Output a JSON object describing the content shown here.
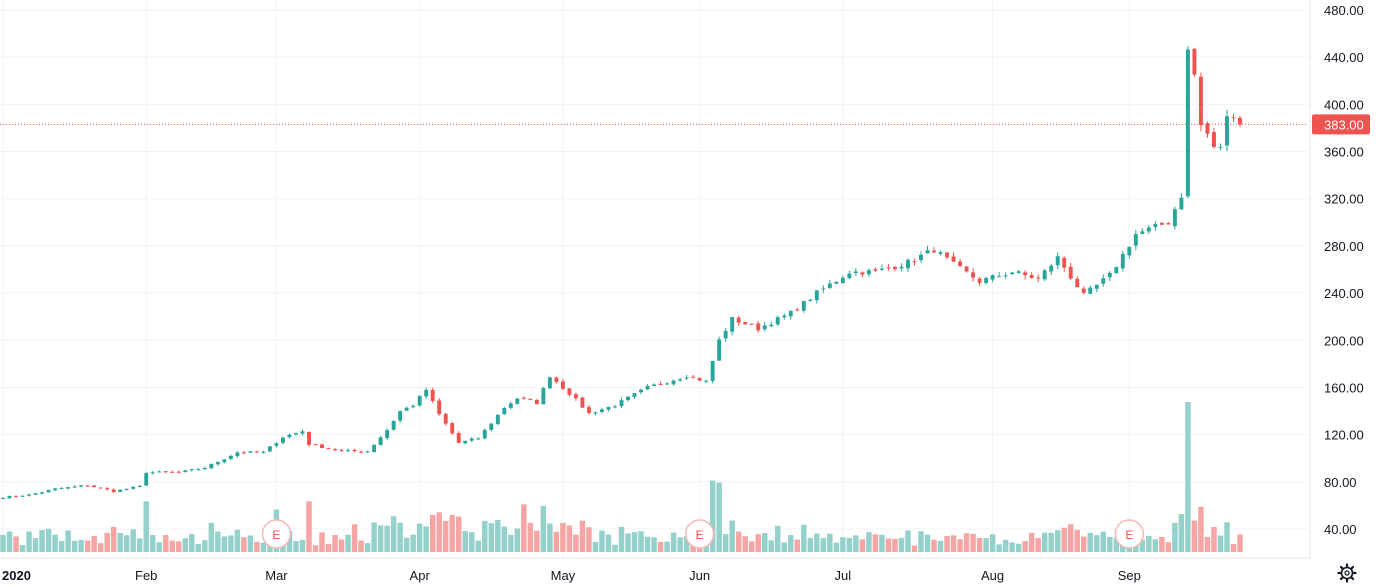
{
  "chart_data": {
    "type": "candlestick",
    "period": "daily",
    "y_axis": {
      "ticks": [
        "40.00",
        "80.00",
        "120.00",
        "160.00",
        "200.00",
        "240.00",
        "280.00",
        "320.00",
        "360.00",
        "400.00",
        "440.00",
        "480.00"
      ],
      "ylim": [
        23,
        487
      ],
      "position": "right"
    },
    "x_axis_labels": [
      "2020",
      "Feb",
      "Mar",
      "Apr",
      "May",
      "Jun",
      "Jul",
      "Aug",
      "Sep"
    ],
    "last_price": 383.0,
    "last_price_label": "383.00",
    "earnings_marker": "E",
    "earnings_dates": [
      "2020-03-02",
      "2020-06-01",
      "2020-09-01"
    ],
    "colors": {
      "up": "#26a69a",
      "down": "#ef5350",
      "volume_up": "#94d1cb",
      "volume_down": "#f5a5a3",
      "grid": "#f0f3fa",
      "price_line": "#ef5350"
    },
    "grid": true,
    "anchors": [
      [
        "2020-01-02",
        67
      ],
      [
        "2020-01-08",
        69
      ],
      [
        "2020-01-14",
        74
      ],
      [
        "2020-01-21",
        77
      ],
      [
        "2020-01-27",
        72
      ],
      [
        "2020-01-31",
        76
      ],
      [
        "2020-02-03",
        88
      ],
      [
        "2020-02-10",
        88
      ],
      [
        "2020-02-14",
        92
      ],
      [
        "2020-02-21",
        105
      ],
      [
        "2020-02-27",
        105
      ],
      [
        "2020-03-03",
        118
      ],
      [
        "2020-03-06",
        123
      ],
      [
        "2020-03-09",
        112
      ],
      [
        "2020-03-16",
        106
      ],
      [
        "2020-03-20",
        106
      ],
      [
        "2020-03-25",
        124
      ],
      [
        "2020-03-27",
        140
      ],
      [
        "2020-03-31",
        145
      ],
      [
        "2020-04-02",
        158
      ],
      [
        "2020-04-06",
        137
      ],
      [
        "2020-04-09",
        113
      ],
      [
        "2020-04-14",
        117
      ],
      [
        "2020-04-20",
        143
      ],
      [
        "2020-04-22",
        151
      ],
      [
        "2020-04-27",
        147
      ],
      [
        "2020-04-29",
        170
      ],
      [
        "2020-05-04",
        155
      ],
      [
        "2020-05-07",
        138
      ],
      [
        "2020-05-13",
        145
      ],
      [
        "2020-05-20",
        160
      ],
      [
        "2020-05-28",
        170
      ],
      [
        "2020-06-02",
        165
      ],
      [
        "2020-06-04",
        200
      ],
      [
        "2020-06-08",
        218
      ],
      [
        "2020-06-12",
        210
      ],
      [
        "2020-06-19",
        223
      ],
      [
        "2020-06-25",
        240
      ],
      [
        "2020-07-02",
        258
      ],
      [
        "2020-07-08",
        258
      ],
      [
        "2020-07-15",
        266
      ],
      [
        "2020-07-21",
        277
      ],
      [
        "2020-07-24",
        264
      ],
      [
        "2020-07-30",
        250
      ],
      [
        "2020-08-06",
        258
      ],
      [
        "2020-08-12",
        252
      ],
      [
        "2020-08-17",
        270
      ],
      [
        "2020-08-21",
        238
      ],
      [
        "2020-08-27",
        255
      ],
      [
        "2020-09-02",
        290
      ],
      [
        "2020-09-09",
        300
      ],
      [
        "2020-09-11",
        323
      ],
      [
        "2020-09-14",
        445
      ],
      [
        "2020-09-15",
        425
      ],
      [
        "2020-09-16",
        382
      ],
      [
        "2020-09-17",
        375
      ],
      [
        "2020-09-18",
        362
      ],
      [
        "2020-09-21",
        365
      ],
      [
        "2020-09-22",
        388
      ],
      [
        "2020-09-23",
        392
      ],
      [
        "2020-09-24",
        383
      ]
    ]
  }
}
